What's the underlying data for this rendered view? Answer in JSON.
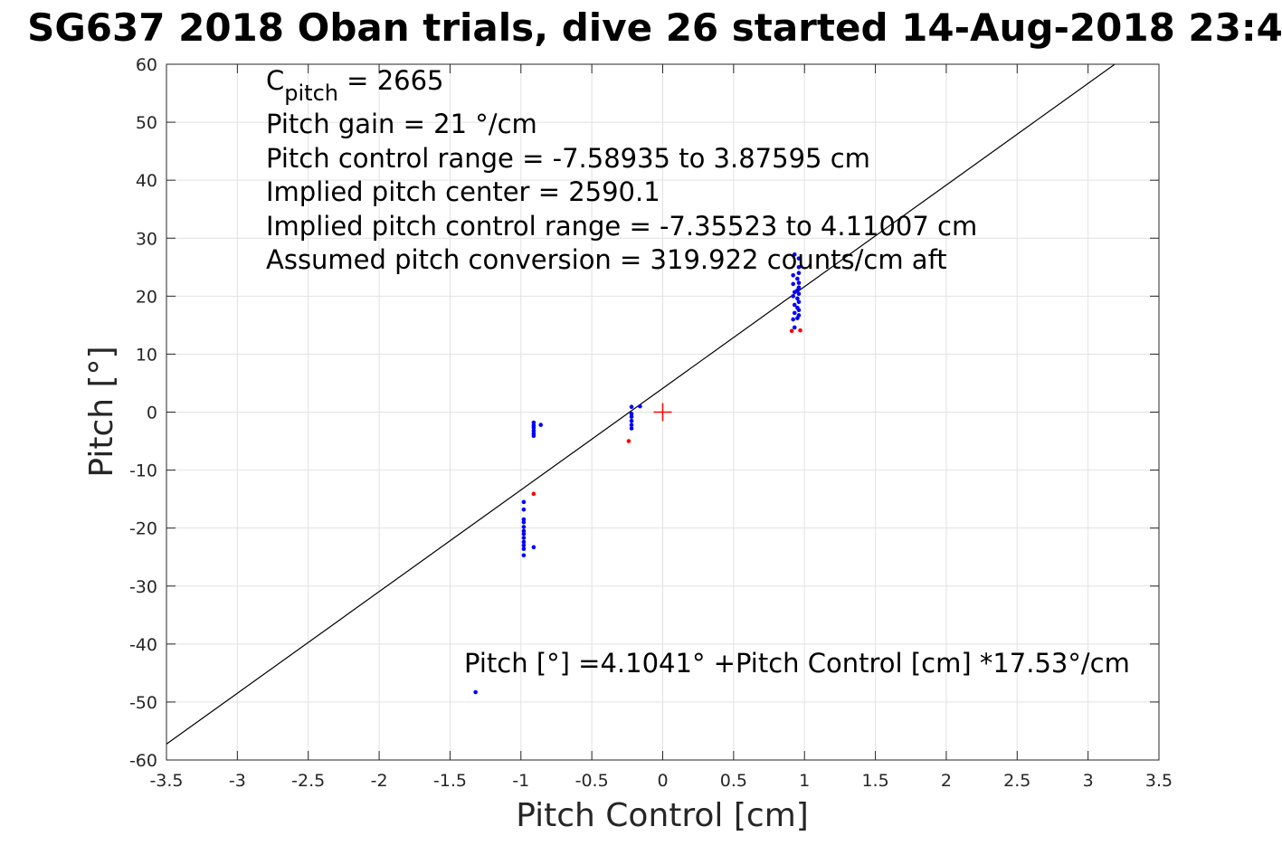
{
  "chart_data": {
    "type": "scatter",
    "title": "SG637 2018 Oban trials, dive 26 started 14-Aug-2018 23:4",
    "xlabel": "Pitch Control [cm]",
    "ylabel": "Pitch [°]",
    "xlim": [
      -3.5,
      3.5
    ],
    "ylim": [
      -60,
      60
    ],
    "xticks": [
      -3.5,
      -3,
      -2.5,
      -2,
      -1.5,
      -1,
      -0.5,
      0,
      0.5,
      1,
      1.5,
      2,
      2.5,
      3,
      3.5
    ],
    "xtick_labels": [
      "-3.5",
      "-3",
      "-2.5",
      "-2",
      "-1.5",
      "-1",
      "-0.5",
      "0",
      "0.5",
      "1",
      "1.5",
      "2",
      "2.5",
      "3",
      "3.5"
    ],
    "yticks": [
      -60,
      -50,
      -40,
      -30,
      -20,
      -10,
      0,
      10,
      20,
      30,
      40,
      50,
      60
    ],
    "ytick_labels": [
      "-60",
      "-50",
      "-40",
      "-30",
      "-20",
      "-10",
      "0",
      "10",
      "20",
      "30",
      "40",
      "50",
      "60"
    ],
    "grid": true,
    "fit_line": {
      "intercept": 4.1041,
      "slope": 17.53,
      "color": "#000000"
    },
    "center_marker": {
      "x": 0,
      "y": 0,
      "color": "#ff0000"
    },
    "series": [
      {
        "color": "#0000ff",
        "points": [
          [
            0.93,
            27.2
          ],
          [
            0.96,
            26.5
          ],
          [
            0.96,
            25.0
          ],
          [
            0.96,
            24.0
          ],
          [
            0.92,
            23.6
          ],
          [
            0.95,
            23.0
          ],
          [
            0.96,
            22.3
          ],
          [
            0.92,
            22.1
          ],
          [
            0.96,
            21.5
          ],
          [
            0.95,
            21.0
          ],
          [
            0.93,
            20.7
          ],
          [
            0.96,
            20.4
          ],
          [
            0.92,
            20.0
          ],
          [
            0.95,
            19.6
          ],
          [
            0.96,
            19.0
          ],
          [
            0.93,
            18.5
          ],
          [
            0.95,
            18.0
          ],
          [
            0.96,
            17.6
          ],
          [
            0.93,
            17.1
          ],
          [
            0.96,
            16.7
          ],
          [
            0.95,
            16.2
          ],
          [
            0.92,
            16.0
          ],
          [
            0.93,
            14.6
          ],
          [
            -0.91,
            -1.8
          ],
          [
            -0.91,
            -2.3
          ],
          [
            -0.91,
            -2.7
          ],
          [
            -0.91,
            -3.2
          ],
          [
            -0.91,
            -3.7
          ],
          [
            -0.91,
            -4.1
          ],
          [
            -0.86,
            -2.2
          ],
          [
            -0.22,
            0.9
          ],
          [
            -0.22,
            -0.3
          ],
          [
            -0.22,
            -0.8
          ],
          [
            -0.22,
            -1.5
          ],
          [
            -0.22,
            -2.2
          ],
          [
            -0.22,
            -2.8
          ],
          [
            -0.16,
            1.0
          ],
          [
            -0.98,
            -15.5
          ],
          [
            -0.98,
            -16.8
          ],
          [
            -0.98,
            -18.5
          ],
          [
            -0.98,
            -19.0
          ],
          [
            -0.98,
            -19.8
          ],
          [
            -0.98,
            -20.5
          ],
          [
            -0.98,
            -21.0
          ],
          [
            -0.98,
            -21.7
          ],
          [
            -0.98,
            -22.4
          ],
          [
            -0.98,
            -23.0
          ],
          [
            -0.98,
            -23.6
          ],
          [
            -0.98,
            -24.7
          ],
          [
            -0.91,
            -23.3
          ],
          [
            -1.32,
            -48.3
          ]
        ]
      },
      {
        "color": "#ff0000",
        "points": [
          [
            0.91,
            14.0
          ],
          [
            0.97,
            14.1
          ],
          [
            -0.91,
            -14.1
          ],
          [
            -0.24,
            -5.0
          ]
        ]
      }
    ],
    "annotations": {
      "cpitch_label": "C",
      "cpitch_subscript": "pitch",
      "cpitch_value": " = 2665",
      "pitch_gain": "Pitch gain = 21 °/cm",
      "pitch_control_range": "Pitch control range = -7.58935 to 3.87595 cm",
      "implied_center": "Implied pitch center = 2590.1",
      "implied_range": "Implied pitch control range = -7.35523 to 4.11007 cm",
      "assumed_conversion": "Assumed pitch conversion = 319.922 counts/cm aft",
      "fit_equation": "Pitch [°] =4.1041° +Pitch Control [cm] *17.53°/cm"
    }
  }
}
